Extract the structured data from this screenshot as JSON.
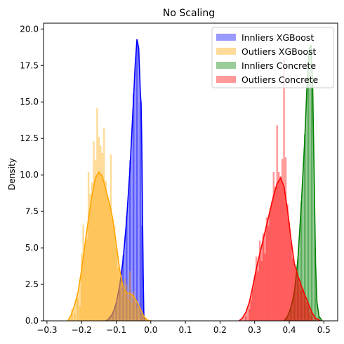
{
  "chart_data": {
    "type": "histogram-kde",
    "title": "No Scaling",
    "xlabel": "",
    "ylabel": "Density",
    "xlim": [
      -0.31,
      0.54
    ],
    "ylim": [
      0,
      20.4
    ],
    "xticks": [
      -0.3,
      -0.2,
      -0.1,
      0.0,
      0.1,
      0.2,
      0.3,
      0.4,
      0.5
    ],
    "xtick_labels": [
      "−0.3",
      "−0.2",
      "−0.1",
      "0.0",
      "0.1",
      "0.2",
      "0.3",
      "0.4",
      "0.5"
    ],
    "yticks": [
      0,
      2.5,
      5,
      7.5,
      10,
      12.5,
      15,
      17.5,
      20
    ],
    "ytick_labels": [
      "0.0",
      "2.5",
      "5.0",
      "7.5",
      "10.0",
      "12.5",
      "15.0",
      "17.5",
      "20.0"
    ],
    "grid": false,
    "legend_position": "top-right",
    "series": [
      {
        "name": "Innliers XGBoost",
        "color": "#0000ff",
        "kde": [
          [
            -0.13,
            0
          ],
          [
            -0.12,
            0.15
          ],
          [
            -0.11,
            0.5
          ],
          [
            -0.1,
            1.2
          ],
          [
            -0.09,
            2.4
          ],
          [
            -0.08,
            4.2
          ],
          [
            -0.07,
            6.9
          ],
          [
            -0.06,
            10.5
          ],
          [
            -0.05,
            15.2
          ],
          [
            -0.045,
            17.6
          ],
          [
            -0.04,
            19.3
          ],
          [
            -0.035,
            18.7
          ],
          [
            -0.03,
            15.5
          ],
          [
            -0.028,
            14.9
          ],
          [
            -0.026,
            12
          ],
          [
            -0.024,
            7.5
          ],
          [
            -0.022,
            3.2
          ],
          [
            -0.02,
            0.3
          ],
          [
            -0.018,
            0
          ]
        ],
        "hist": [
          [
            -0.12,
            0.3
          ],
          [
            -0.11,
            0.6
          ],
          [
            -0.1,
            1.2
          ],
          [
            -0.09,
            2.2
          ],
          [
            -0.08,
            4.5
          ],
          [
            -0.07,
            7.2
          ],
          [
            -0.06,
            11
          ],
          [
            -0.05,
            15.6
          ],
          [
            -0.04,
            19.0
          ],
          [
            -0.03,
            15.0
          ],
          [
            -0.025,
            6.5
          ]
        ]
      },
      {
        "name": "Outliers XGBoost",
        "color": "#ffa500",
        "kde": [
          [
            -0.24,
            0
          ],
          [
            -0.23,
            0.4
          ],
          [
            -0.22,
            1.1
          ],
          [
            -0.21,
            2.0
          ],
          [
            -0.2,
            3.5
          ],
          [
            -0.19,
            5.3
          ],
          [
            -0.18,
            7.0
          ],
          [
            -0.17,
            8.6
          ],
          [
            -0.16,
            9.8
          ],
          [
            -0.15,
            10.2
          ],
          [
            -0.14,
            9.9
          ],
          [
            -0.13,
            9.0
          ],
          [
            -0.12,
            8.1
          ],
          [
            -0.11,
            7.0
          ],
          [
            -0.1,
            5.3
          ],
          [
            -0.09,
            3.5
          ],
          [
            -0.08,
            2.3
          ],
          [
            -0.07,
            1.9
          ],
          [
            -0.06,
            1.9
          ],
          [
            -0.05,
            1.7
          ],
          [
            -0.04,
            1.3
          ],
          [
            -0.03,
            0.8
          ],
          [
            -0.02,
            0.3
          ],
          [
            -0.01,
            0.05
          ],
          [
            0.0,
            0
          ]
        ],
        "hist": [
          [
            -0.235,
            0.2
          ],
          [
            -0.228,
            0.8
          ],
          [
            -0.22,
            0.5
          ],
          [
            -0.212,
            1.6
          ],
          [
            -0.205,
            1.0
          ],
          [
            -0.2,
            4.6
          ],
          [
            -0.195,
            6.6
          ],
          [
            -0.19,
            5.2
          ],
          [
            -0.185,
            5.6
          ],
          [
            -0.18,
            10.2
          ],
          [
            -0.175,
            8.7
          ],
          [
            -0.17,
            9.5
          ],
          [
            -0.165,
            12.3
          ],
          [
            -0.16,
            11.0
          ],
          [
            -0.155,
            14.6
          ],
          [
            -0.15,
            12.6
          ],
          [
            -0.145,
            12.0
          ],
          [
            -0.14,
            11.5
          ],
          [
            -0.135,
            13.2
          ],
          [
            -0.13,
            9.6
          ],
          [
            -0.125,
            8.6
          ],
          [
            -0.12,
            8.1
          ],
          [
            -0.115,
            11.4
          ],
          [
            -0.11,
            6.9
          ],
          [
            -0.105,
            6.5
          ],
          [
            -0.1,
            5.1
          ],
          [
            -0.095,
            3.6
          ],
          [
            -0.09,
            3.2
          ],
          [
            -0.085,
            2.6
          ],
          [
            -0.08,
            2.1
          ],
          [
            -0.075,
            2.9
          ],
          [
            -0.07,
            2.5
          ],
          [
            -0.065,
            1.5
          ],
          [
            -0.06,
            3.4
          ],
          [
            -0.055,
            1.2
          ],
          [
            -0.05,
            2.0
          ],
          [
            -0.045,
            1.3
          ],
          [
            -0.04,
            0.9
          ],
          [
            -0.035,
            0.8
          ],
          [
            -0.03,
            0.5
          ],
          [
            -0.025,
            0.4
          ],
          [
            -0.02,
            0.3
          ],
          [
            -0.015,
            0.2
          ]
        ]
      },
      {
        "name": "Innliers Concrete",
        "color": "#008000",
        "kde": [
          [
            0.385,
            0
          ],
          [
            0.395,
            0.3
          ],
          [
            0.405,
            0.9
          ],
          [
            0.415,
            2.0
          ],
          [
            0.425,
            4.2
          ],
          [
            0.435,
            8.0
          ],
          [
            0.445,
            12.5
          ],
          [
            0.452,
            16.5
          ],
          [
            0.458,
            18.6
          ],
          [
            0.463,
            18.9
          ],
          [
            0.468,
            15.8
          ],
          [
            0.472,
            10.0
          ],
          [
            0.476,
            4.0
          ],
          [
            0.48,
            1.3
          ],
          [
            0.486,
            0.3
          ],
          [
            0.495,
            0
          ]
        ],
        "hist": [
          [
            0.395,
            0.3
          ],
          [
            0.405,
            1.0
          ],
          [
            0.415,
            2.1
          ],
          [
            0.425,
            4.3
          ],
          [
            0.435,
            8.2
          ],
          [
            0.445,
            12.8
          ],
          [
            0.455,
            17.0
          ],
          [
            0.465,
            16.2
          ],
          [
            0.475,
            5.0
          ],
          [
            0.485,
            0.3
          ]
        ]
      },
      {
        "name": "Outliers Concrete",
        "color": "#ff0000",
        "kde": [
          [
            0.255,
            0
          ],
          [
            0.265,
            0.2
          ],
          [
            0.275,
            0.6
          ],
          [
            0.285,
            1.3
          ],
          [
            0.295,
            2.4
          ],
          [
            0.305,
            3.6
          ],
          [
            0.315,
            4.6
          ],
          [
            0.325,
            5.6
          ],
          [
            0.335,
            6.6
          ],
          [
            0.345,
            7.6
          ],
          [
            0.355,
            8.6
          ],
          [
            0.365,
            9.4
          ],
          [
            0.375,
            9.8
          ],
          [
            0.385,
            9.2
          ],
          [
            0.395,
            7.6
          ],
          [
            0.405,
            5.6
          ],
          [
            0.415,
            3.9
          ],
          [
            0.425,
            3.1
          ],
          [
            0.435,
            2.4
          ],
          [
            0.445,
            1.8
          ],
          [
            0.455,
            1.2
          ],
          [
            0.465,
            0.6
          ],
          [
            0.475,
            0.2
          ],
          [
            0.49,
            0
          ]
        ],
        "hist": [
          [
            0.275,
            0.3
          ],
          [
            0.285,
            0.8
          ],
          [
            0.29,
            1.4
          ],
          [
            0.295,
            2.2
          ],
          [
            0.3,
            3.0
          ],
          [
            0.305,
            4.4
          ],
          [
            0.31,
            3.4
          ],
          [
            0.315,
            5.5
          ],
          [
            0.32,
            4.1
          ],
          [
            0.325,
            6.0
          ],
          [
            0.33,
            4.6
          ],
          [
            0.335,
            7.1
          ],
          [
            0.34,
            6.5
          ],
          [
            0.345,
            7.7
          ],
          [
            0.35,
            8.2
          ],
          [
            0.355,
            10.2
          ],
          [
            0.36,
            9.2
          ],
          [
            0.365,
            13.4
          ],
          [
            0.37,
            10.2
          ],
          [
            0.375,
            9.9
          ],
          [
            0.38,
            11.1
          ],
          [
            0.385,
            18.0
          ],
          [
            0.39,
            11.2
          ],
          [
            0.395,
            8.0
          ],
          [
            0.4,
            6.8
          ],
          [
            0.405,
            5.4
          ],
          [
            0.41,
            4.3
          ],
          [
            0.415,
            3.9
          ],
          [
            0.42,
            3.4
          ],
          [
            0.425,
            2.9
          ],
          [
            0.43,
            2.5
          ],
          [
            0.435,
            2.1
          ],
          [
            0.44,
            2.2
          ],
          [
            0.445,
            1.7
          ],
          [
            0.45,
            1.3
          ],
          [
            0.455,
            1.0
          ],
          [
            0.46,
            0.6
          ],
          [
            0.465,
            0.3
          ]
        ]
      }
    ]
  }
}
